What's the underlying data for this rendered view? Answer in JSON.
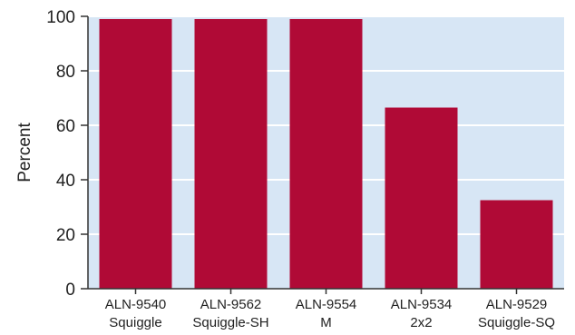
{
  "chart_data": {
    "type": "bar",
    "title": "",
    "xlabel": "",
    "ylabel": "Percent",
    "ylim": [
      0,
      100
    ],
    "yticks": [
      0,
      20,
      40,
      60,
      80,
      100
    ],
    "grid": true,
    "legend": "none",
    "categories": [
      [
        "ALN-9540",
        "Squiggle"
      ],
      [
        "ALN-9562",
        "Squiggle-SH"
      ],
      [
        "ALN-9554",
        "M"
      ],
      [
        "ALN-9534",
        "2x2"
      ],
      [
        "ALN-9529",
        "Squiggle-SQ"
      ]
    ],
    "values": [
      99,
      99,
      99,
      66.5,
      32.5
    ],
    "colors": {
      "bar": "#b00a36",
      "plot_background": "#d7e6f5",
      "grid": "#ffffff",
      "axis": "#333333"
    }
  }
}
